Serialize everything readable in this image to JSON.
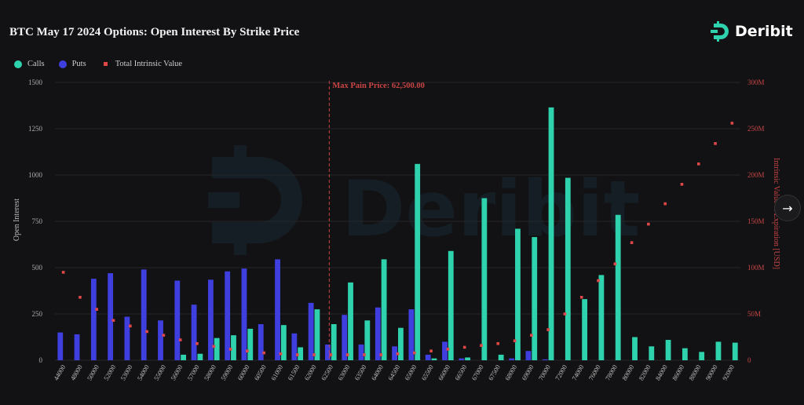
{
  "title": "BTC May 17 2024 Options: Open Interest By Strike Price",
  "brand": "Deribit",
  "watermark": "Deribit",
  "nav_icon": "→",
  "colors": {
    "calls": "#2ed3ae",
    "puts": "#3f3fe0",
    "intrinsic": "#e04848",
    "maxpain": "#c94545"
  },
  "chart_data": {
    "type": "bar",
    "categories": [
      "44000",
      "48000",
      "50000",
      "52000",
      "53000",
      "54000",
      "55000",
      "56000",
      "57000",
      "58000",
      "59000",
      "60000",
      "60500",
      "61000",
      "61500",
      "62000",
      "62500",
      "63000",
      "63500",
      "64000",
      "64500",
      "65000",
      "65500",
      "66000",
      "66500",
      "67000",
      "67500",
      "68000",
      "69000",
      "70000",
      "72000",
      "74000",
      "76000",
      "78000",
      "80000",
      "82000",
      "84000",
      "86000",
      "88000",
      "90000",
      "92000"
    ],
    "series": [
      {
        "name": "Calls",
        "type": "bar",
        "axis": "left",
        "values": [
          0,
          0,
          0,
          0,
          0,
          0,
          0,
          30,
          35,
          120,
          135,
          170,
          0,
          190,
          70,
          275,
          195,
          420,
          215,
          545,
          175,
          1060,
          10,
          590,
          15,
          875,
          30,
          710,
          665,
          1365,
          985,
          330,
          460,
          785,
          125,
          75,
          110,
          65,
          45,
          100,
          95
        ]
      },
      {
        "name": "Puts",
        "type": "bar",
        "axis": "left",
        "values": [
          150,
          140,
          440,
          470,
          235,
          490,
          215,
          430,
          300,
          435,
          480,
          495,
          195,
          545,
          145,
          310,
          85,
          245,
          85,
          285,
          75,
          275,
          30,
          100,
          10,
          0,
          0,
          10,
          50,
          5,
          0,
          0,
          0,
          0,
          0,
          0,
          0,
          0,
          0,
          0,
          0
        ]
      },
      {
        "name": "Total Intrinsic Value",
        "type": "scatter",
        "axis": "right",
        "values": [
          95,
          68,
          55,
          43,
          37,
          31,
          27,
          22,
          18,
          15,
          12,
          10,
          8,
          7,
          6,
          6,
          6,
          6,
          6,
          6,
          7,
          8,
          10,
          12,
          14,
          16,
          18,
          21,
          27,
          33,
          50,
          68,
          86,
          104,
          127,
          147,
          169,
          190,
          212,
          234,
          256
        ]
      }
    ],
    "y_left": {
      "label": "Open Interest",
      "min": 0,
      "max": 1500,
      "ticks": [
        "0",
        "250",
        "500",
        "750",
        "1000",
        "1250",
        "1500"
      ]
    },
    "y_right": {
      "label": "Intrinsic Value at Expiration [USD]",
      "min": 0,
      "max": 300,
      "ticks": [
        "0",
        "50M",
        "100M",
        "150M",
        "200M",
        "250M",
        "300M"
      ]
    },
    "annotation": {
      "label": "Max Pain Price: 62,500.00",
      "category": "62500"
    },
    "grid": true,
    "legend": "top-left"
  }
}
